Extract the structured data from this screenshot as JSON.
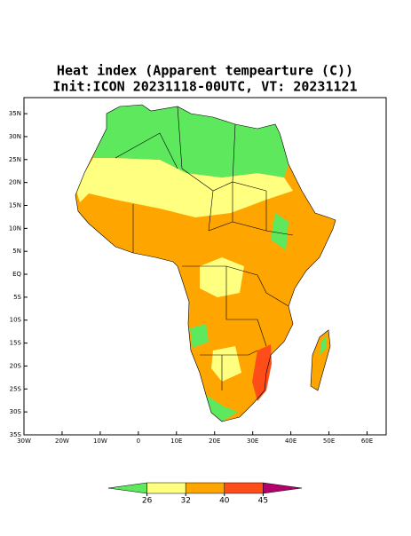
{
  "chart_data": {
    "type": "map",
    "title": "Heat index (Apparent tempearture (C))",
    "subtitle": "Init:ICON 20231118-00UTC, VT: 20231121",
    "xlim": [
      -30,
      65
    ],
    "ylim": [
      -35,
      38.5
    ],
    "xticks": [
      {
        "value": -30,
        "label": "30W"
      },
      {
        "value": -20,
        "label": "20W"
      },
      {
        "value": -10,
        "label": "10W"
      },
      0,
      {
        "value": 10,
        "label": "10E"
      },
      {
        "value": 20,
        "label": "20E"
      },
      {
        "value": 30,
        "label": "30E"
      },
      {
        "value": 40,
        "label": "40E"
      },
      {
        "value": 50,
        "label": "50E"
      },
      {
        "value": 60,
        "label": "60E"
      }
    ],
    "yticks": [
      {
        "value": 35,
        "label": "35N"
      },
      {
        "value": 30,
        "label": "30N"
      },
      {
        "value": 25,
        "label": "25N"
      },
      {
        "value": 20,
        "label": "20N"
      },
      {
        "value": 15,
        "label": "15N"
      },
      {
        "value": 10,
        "label": "10N"
      },
      {
        "value": 5,
        "label": "5N"
      },
      {
        "value": 0,
        "label": "EQ"
      },
      {
        "value": -5,
        "label": "5S"
      },
      {
        "value": -10,
        "label": "10S"
      },
      {
        "value": -15,
        "label": "15S"
      },
      {
        "value": -20,
        "label": "20S"
      },
      {
        "value": -25,
        "label": "25S"
      },
      {
        "value": -30,
        "label": "30S"
      },
      {
        "value": -35,
        "label": "35S"
      }
    ],
    "colorbar": {
      "levels": [
        26,
        32,
        40,
        45
      ],
      "colors": [
        "#5ee85e",
        "#ffff80",
        "#ffa500",
        "#ff4d1a",
        "#b3006b"
      ]
    }
  }
}
